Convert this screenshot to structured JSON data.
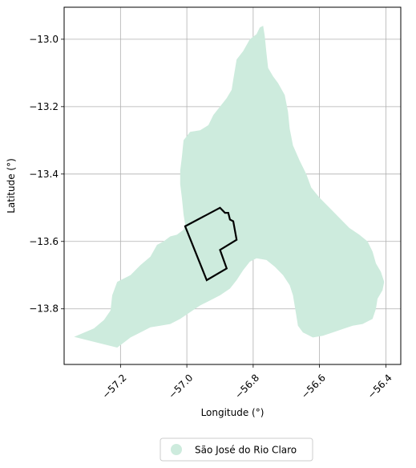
{
  "chart_data": {
    "type": "map",
    "xlabel": "Longitude (°)",
    "ylabel": "Latitude (°)",
    "xlim": [
      -57.37,
      -56.355
    ],
    "ylim": [
      -13.965,
      -12.905
    ],
    "xticks": [
      -57.2,
      -57.0,
      -56.8,
      -56.6,
      -56.4
    ],
    "xtick_labels": [
      "−57.2",
      "−57.0",
      "−56.8",
      "−56.6",
      "−56.4"
    ],
    "yticks": [
      -13.0,
      -13.2,
      -13.4,
      -13.6,
      -13.8
    ],
    "ytick_labels": [
      "−13.0",
      "−13.2",
      "−13.4",
      "−13.6",
      "−13.8"
    ],
    "grid": true,
    "legend": {
      "placement": "bottom-center",
      "entries": [
        {
          "label": "São José do Rio Claro",
          "color": "#cdebdd"
        }
      ]
    },
    "region": {
      "name": "São José do Rio Claro",
      "fill": "#cdebdd",
      "polygon": [
        [
          -57.34,
          -13.883
        ],
        [
          -57.28,
          -13.858
        ],
        [
          -57.25,
          -13.833
        ],
        [
          -57.23,
          -13.805
        ],
        [
          -57.225,
          -13.76
        ],
        [
          -57.21,
          -13.72
        ],
        [
          -57.17,
          -13.7
        ],
        [
          -57.14,
          -13.67
        ],
        [
          -57.11,
          -13.645
        ],
        [
          -57.09,
          -13.61
        ],
        [
          -57.07,
          -13.6
        ],
        [
          -57.05,
          -13.585
        ],
        [
          -57.03,
          -13.58
        ],
        [
          -57.01,
          -13.565
        ],
        [
          -57.005,
          -13.55
        ],
        [
          -57.01,
          -13.52
        ],
        [
          -57.015,
          -13.47
        ],
        [
          -57.02,
          -13.43
        ],
        [
          -57.02,
          -13.39
        ],
        [
          -57.015,
          -13.35
        ],
        [
          -57.01,
          -13.3
        ],
        [
          -56.99,
          -13.275
        ],
        [
          -56.96,
          -13.27
        ],
        [
          -56.935,
          -13.255
        ],
        [
          -56.92,
          -13.225
        ],
        [
          -56.9,
          -13.2
        ],
        [
          -56.88,
          -13.175
        ],
        [
          -56.865,
          -13.15
        ],
        [
          -56.86,
          -13.12
        ],
        [
          -56.855,
          -13.09
        ],
        [
          -56.85,
          -13.06
        ],
        [
          -56.83,
          -13.035
        ],
        [
          -56.81,
          -13.0
        ],
        [
          -56.79,
          -12.985
        ],
        [
          -56.78,
          -12.965
        ],
        [
          -56.77,
          -12.96
        ],
        [
          -56.765,
          -12.99
        ],
        [
          -56.76,
          -13.04
        ],
        [
          -56.755,
          -13.085
        ],
        [
          -56.74,
          -13.11
        ],
        [
          -56.725,
          -13.13
        ],
        [
          -56.705,
          -13.165
        ],
        [
          -56.695,
          -13.215
        ],
        [
          -56.69,
          -13.265
        ],
        [
          -56.68,
          -13.315
        ],
        [
          -56.66,
          -13.36
        ],
        [
          -56.64,
          -13.4
        ],
        [
          -56.625,
          -13.44
        ],
        [
          -56.6,
          -13.47
        ],
        [
          -56.57,
          -13.5
        ],
        [
          -56.54,
          -13.53
        ],
        [
          -56.51,
          -13.56
        ],
        [
          -56.48,
          -13.58
        ],
        [
          -56.455,
          -13.6
        ],
        [
          -56.44,
          -13.63
        ],
        [
          -56.43,
          -13.665
        ],
        [
          -56.415,
          -13.69
        ],
        [
          -56.405,
          -13.72
        ],
        [
          -56.41,
          -13.745
        ],
        [
          -56.425,
          -13.77
        ],
        [
          -56.43,
          -13.8
        ],
        [
          -56.44,
          -13.83
        ],
        [
          -56.47,
          -13.845
        ],
        [
          -56.5,
          -13.85
        ],
        [
          -56.53,
          -13.86
        ],
        [
          -56.56,
          -13.87
        ],
        [
          -56.59,
          -13.88
        ],
        [
          -56.62,
          -13.885
        ],
        [
          -56.65,
          -13.87
        ],
        [
          -56.665,
          -13.85
        ],
        [
          -56.67,
          -13.82
        ],
        [
          -56.675,
          -13.79
        ],
        [
          -56.68,
          -13.76
        ],
        [
          -56.69,
          -13.73
        ],
        [
          -56.71,
          -13.7
        ],
        [
          -56.735,
          -13.675
        ],
        [
          -56.76,
          -13.655
        ],
        [
          -56.79,
          -13.65
        ],
        [
          -56.81,
          -13.66
        ],
        [
          -56.83,
          -13.685
        ],
        [
          -56.85,
          -13.715
        ],
        [
          -56.87,
          -13.74
        ],
        [
          -56.9,
          -13.76
        ],
        [
          -56.93,
          -13.775
        ],
        [
          -56.96,
          -13.79
        ],
        [
          -56.99,
          -13.81
        ],
        [
          -57.02,
          -13.83
        ],
        [
          -57.05,
          -13.845
        ],
        [
          -57.08,
          -13.85
        ],
        [
          -57.11,
          -13.855
        ],
        [
          -57.14,
          -13.87
        ],
        [
          -57.17,
          -13.885
        ],
        [
          -57.19,
          -13.9
        ],
        [
          -57.21,
          -13.915
        ]
      ]
    },
    "outline": {
      "stroke": "#000000",
      "polygon": [
        [
          -57.005,
          -13.555
        ],
        [
          -56.9,
          -13.5
        ],
        [
          -56.885,
          -13.515
        ],
        [
          -56.875,
          -13.515
        ],
        [
          -56.87,
          -13.535
        ],
        [
          -56.86,
          -13.54
        ],
        [
          -56.85,
          -13.595
        ],
        [
          -56.9,
          -13.625
        ],
        [
          -56.88,
          -13.68
        ],
        [
          -56.94,
          -13.715
        ]
      ]
    }
  }
}
